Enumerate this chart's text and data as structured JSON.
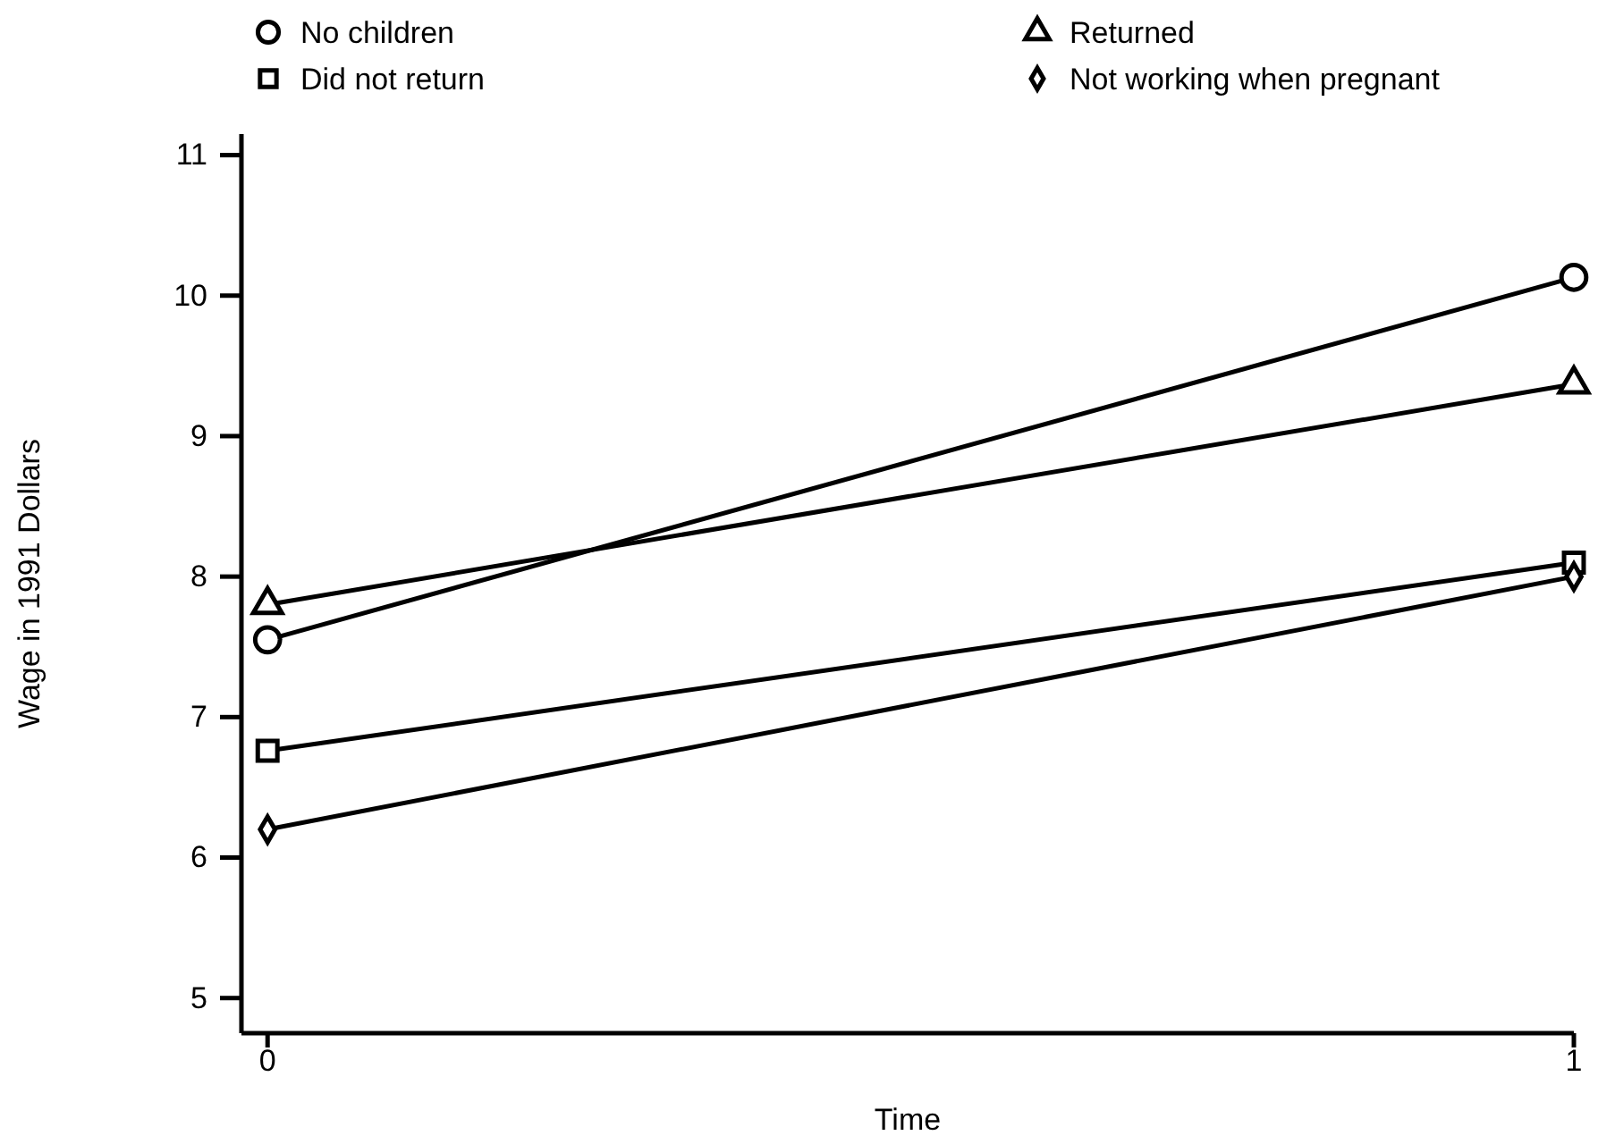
{
  "chart_data": {
    "type": "line",
    "xlabel": "Time",
    "ylabel": "Wage in 1991 Dollars",
    "x": [
      0,
      1
    ],
    "xlim": [
      -0.02,
      1.0
    ],
    "xticks": [
      0,
      1
    ],
    "ylim": [
      4.75,
      11.15
    ],
    "yticks": [
      5,
      6,
      7,
      8,
      9,
      10,
      11
    ],
    "grid": false,
    "legend": "top",
    "line_style": "solid",
    "series": [
      {
        "name": "No children",
        "color": "#000000",
        "marker": "circle",
        "values": [
          7.55,
          10.13
        ]
      },
      {
        "name": "Returned",
        "color": "#000000",
        "marker": "triangle",
        "values": [
          7.8,
          9.37
        ]
      },
      {
        "name": "Did not return",
        "color": "#000000",
        "marker": "square",
        "values": [
          6.76,
          8.1
        ]
      },
      {
        "name": "Not working when pregnant",
        "color": "#000000",
        "marker": "diamond",
        "values": [
          6.2,
          8.0
        ]
      }
    ]
  }
}
